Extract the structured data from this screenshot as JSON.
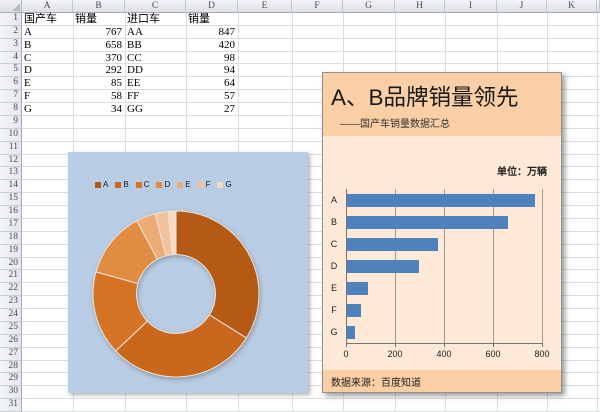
{
  "spreadsheet": {
    "col_headers": [
      "A",
      "B",
      "C",
      "D",
      "E",
      "F",
      "G",
      "H",
      "I",
      "J",
      "K"
    ],
    "row_numbers": [
      1,
      2,
      3,
      4,
      5,
      6,
      7,
      8,
      9,
      10,
      11,
      12,
      13,
      14,
      15,
      16,
      17,
      18,
      19,
      20,
      21,
      22,
      23,
      24,
      25,
      26,
      27,
      28,
      29,
      30,
      31
    ],
    "cells": [
      [
        "国产车",
        "销量",
        "进口车",
        "销量"
      ],
      [
        "A",
        767,
        "AA",
        847
      ],
      [
        "B",
        658,
        "BB",
        420
      ],
      [
        "C",
        370,
        "CC",
        98
      ],
      [
        "D",
        292,
        "DD",
        94
      ],
      [
        "E",
        85,
        "EE",
        64
      ],
      [
        "F",
        58,
        "FF",
        57
      ],
      [
        "G",
        34,
        "GG",
        27
      ]
    ]
  },
  "report_panel": {
    "title": "A、B品牌销量领先",
    "subtitle": "——国产车销量数据汇总",
    "unit_label": "单位：万辆",
    "source_label": "数据来源：百度知道"
  },
  "chart_data": [
    {
      "type": "pie",
      "subtype": "doughnut",
      "categories": [
        "A",
        "B",
        "C",
        "D",
        "E",
        "F",
        "G"
      ],
      "values": [
        767,
        658,
        370,
        292,
        85,
        58,
        34
      ],
      "legend_position": "top",
      "colors": [
        "#b45a14",
        "#c9671c",
        "#d47424",
        "#e08d42",
        "#ecac74",
        "#f2c29c",
        "#f8d9c2"
      ],
      "background": "#b8cce4"
    },
    {
      "type": "bar",
      "orientation": "horizontal",
      "categories": [
        "A",
        "B",
        "C",
        "D",
        "E",
        "F",
        "G"
      ],
      "values": [
        767,
        658,
        370,
        292,
        85,
        58,
        34
      ],
      "title": "A、B品牌销量领先",
      "xlabel": "",
      "ylabel": "",
      "xlim": [
        0,
        800
      ],
      "x_ticks": [
        0,
        200,
        400,
        600,
        800
      ],
      "grid": true,
      "bar_color": "#4f81bd"
    }
  ],
  "colors": {
    "panel_band": "#fbcfa6",
    "panel_body": "#fde9d6",
    "blue_box": "#b8cce4",
    "bar": "#4f81bd"
  }
}
